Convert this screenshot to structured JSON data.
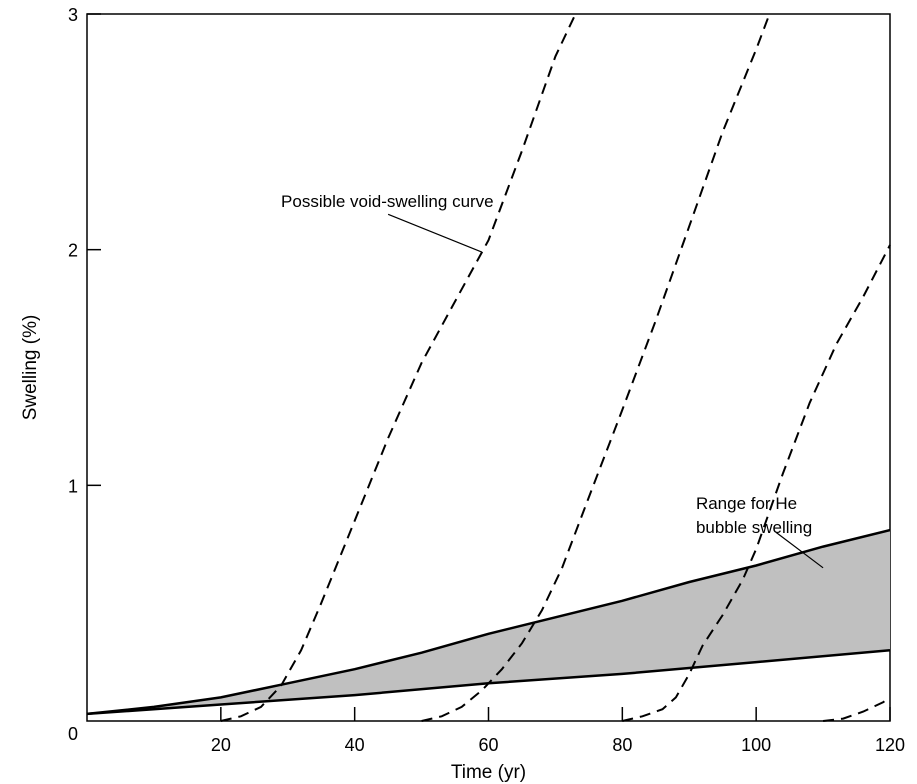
{
  "chart_data": {
    "type": "line",
    "xlabel": "Time (yr)",
    "ylabel": "Swelling (%)",
    "xlim": [
      0,
      120
    ],
    "ylim": [
      0,
      3
    ],
    "x_ticks": [
      20,
      40,
      60,
      80,
      100,
      120
    ],
    "y_ticks": [
      0,
      1,
      2,
      3
    ],
    "grid": false,
    "band": {
      "name": "Range for He bubble swelling",
      "fill": "#c0c0c0",
      "upper": [
        [
          0,
          0.03
        ],
        [
          10,
          0.06
        ],
        [
          20,
          0.1
        ],
        [
          30,
          0.16
        ],
        [
          40,
          0.22
        ],
        [
          50,
          0.29
        ],
        [
          60,
          0.37
        ],
        [
          70,
          0.44
        ],
        [
          80,
          0.51
        ],
        [
          90,
          0.59
        ],
        [
          100,
          0.66
        ],
        [
          110,
          0.74
        ],
        [
          120,
          0.81
        ]
      ],
      "lower": [
        [
          0,
          0.03
        ],
        [
          20,
          0.07
        ],
        [
          40,
          0.11
        ],
        [
          60,
          0.16
        ],
        [
          80,
          0.2
        ],
        [
          100,
          0.25
        ],
        [
          120,
          0.3
        ]
      ]
    },
    "void_curves": [
      {
        "style": "dashed",
        "points": [
          [
            20,
            0.0
          ],
          [
            23,
            0.02
          ],
          [
            26,
            0.06
          ],
          [
            29,
            0.15
          ],
          [
            32,
            0.3
          ],
          [
            35,
            0.5
          ],
          [
            40,
            0.85
          ],
          [
            45,
            1.2
          ],
          [
            50,
            1.52
          ],
          [
            55,
            1.78
          ],
          [
            60,
            2.04
          ],
          [
            65,
            2.42
          ],
          [
            70,
            2.82
          ],
          [
            73,
            3.0
          ]
        ]
      },
      {
        "style": "dashed",
        "points": [
          [
            50,
            0.0
          ],
          [
            53,
            0.02
          ],
          [
            56,
            0.06
          ],
          [
            59,
            0.13
          ],
          [
            62,
            0.22
          ],
          [
            65,
            0.33
          ],
          [
            68,
            0.47
          ],
          [
            71,
            0.65
          ],
          [
            75,
            0.95
          ],
          [
            80,
            1.32
          ],
          [
            85,
            1.7
          ],
          [
            90,
            2.1
          ],
          [
            95,
            2.5
          ],
          [
            100,
            2.85
          ],
          [
            102,
            3.0
          ]
        ]
      },
      {
        "style": "dashed",
        "points": [
          [
            80,
            0.0
          ],
          [
            83,
            0.02
          ],
          [
            86,
            0.05
          ],
          [
            88,
            0.1
          ],
          [
            90,
            0.2
          ],
          [
            92,
            0.32
          ],
          [
            95,
            0.45
          ],
          [
            98,
            0.6
          ],
          [
            100,
            0.73
          ],
          [
            104,
            1.05
          ],
          [
            108,
            1.35
          ],
          [
            112,
            1.6
          ],
          [
            116,
            1.8
          ],
          [
            120,
            2.02
          ]
        ]
      },
      {
        "style": "dashed",
        "points": [
          [
            110,
            0.0
          ],
          [
            113,
            0.01
          ],
          [
            116,
            0.04
          ],
          [
            119,
            0.08
          ],
          [
            120,
            0.1
          ]
        ]
      }
    ],
    "annotations": [
      {
        "text": "Possible void-swelling curve",
        "x": 29,
        "y": 2.18,
        "pointer_from": [
          45,
          2.15
        ],
        "pointer_to": [
          59,
          1.99
        ]
      },
      {
        "text_lines": [
          "Range for He",
          "bubble swelling"
        ],
        "x": 91,
        "y": 0.9,
        "pointer_from": [
          103,
          0.8
        ],
        "pointer_to": [
          110,
          0.65
        ]
      }
    ]
  }
}
